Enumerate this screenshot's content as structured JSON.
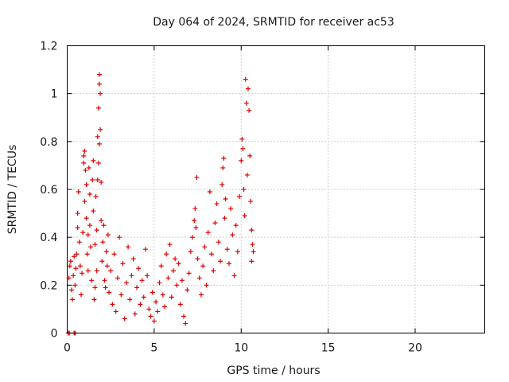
{
  "chart_data": {
    "type": "scatter",
    "title": "Day 064 of 2024, SRMTID for receiver ac53",
    "xlabel": "GPS time / hours",
    "ylabel": "SRMTID / TECUs",
    "xlim": [
      0,
      24
    ],
    "ylim": [
      0,
      1.2
    ],
    "xticks": [
      0,
      5,
      10,
      15,
      20
    ],
    "xtick_labels": [
      "0",
      "5",
      "10",
      "15",
      "20"
    ],
    "yticks": [
      0,
      0.2,
      0.4,
      0.6,
      0.8,
      1,
      1.2
    ],
    "ytick_labels": [
      "0",
      "0.2",
      "0.4",
      "0.6",
      "0.8",
      "1",
      "1.2"
    ],
    "grid": true,
    "marker": "+",
    "color": "#e00000",
    "series": [
      {
        "name": "SRMTID",
        "points": [
          [
            0.05,
            0.0
          ],
          [
            0.12,
            0.0
          ],
          [
            0.4,
            0.0
          ],
          [
            0.45,
            0.0
          ],
          [
            0.1,
            0.23
          ],
          [
            0.15,
            0.28
          ],
          [
            0.2,
            0.3
          ],
          [
            0.25,
            0.18
          ],
          [
            0.3,
            0.14
          ],
          [
            0.35,
            0.24
          ],
          [
            0.4,
            0.32
          ],
          [
            0.45,
            0.2
          ],
          [
            0.5,
            0.27
          ],
          [
            0.55,
            0.33
          ],
          [
            0.6,
            0.44
          ],
          [
            0.6,
            0.5
          ],
          [
            0.65,
            0.59
          ],
          [
            0.7,
            0.38
          ],
          [
            0.75,
            0.28
          ],
          [
            0.8,
            0.16
          ],
          [
            0.85,
            0.25
          ],
          [
            0.9,
            0.42
          ],
          [
            0.95,
            0.71
          ],
          [
            0.95,
            0.74
          ],
          [
            1.0,
            0.76
          ],
          [
            1.0,
            0.55
          ],
          [
            1.05,
            0.68
          ],
          [
            1.1,
            0.62
          ],
          [
            1.1,
            0.48
          ],
          [
            1.15,
            0.33
          ],
          [
            1.2,
            0.41
          ],
          [
            1.2,
            0.26
          ],
          [
            1.25,
            0.69
          ],
          [
            1.3,
            0.58
          ],
          [
            1.3,
            0.45
          ],
          [
            1.35,
            0.36
          ],
          [
            1.4,
            0.22
          ],
          [
            1.45,
            0.64
          ],
          [
            1.5,
            0.72
          ],
          [
            1.5,
            0.51
          ],
          [
            1.55,
            0.14
          ],
          [
            1.6,
            0.37
          ],
          [
            1.6,
            0.19
          ],
          [
            1.65,
            0.57
          ],
          [
            1.7,
            0.43
          ],
          [
            1.7,
            0.26
          ],
          [
            1.75,
            0.82
          ],
          [
            1.75,
            0.64
          ],
          [
            1.8,
            0.94
          ],
          [
            1.8,
            0.71
          ],
          [
            1.85,
            0.79
          ],
          [
            1.85,
            1.08
          ],
          [
            1.85,
            1.04
          ],
          [
            1.9,
            1.0
          ],
          [
            1.9,
            0.85
          ],
          [
            1.95,
            0.63
          ],
          [
            1.95,
            0.47
          ],
          [
            2.0,
            0.3
          ],
          [
            2.05,
            0.38
          ],
          [
            2.1,
            0.45
          ],
          [
            2.15,
            0.22
          ],
          [
            2.2,
            0.19
          ],
          [
            2.25,
            0.34
          ],
          [
            2.3,
            0.28
          ],
          [
            2.35,
            0.41
          ],
          [
            2.4,
            0.17
          ],
          [
            2.5,
            0.26
          ],
          [
            2.6,
            0.12
          ],
          [
            2.7,
            0.33
          ],
          [
            2.8,
            0.09
          ],
          [
            2.9,
            0.23
          ],
          [
            3.0,
            0.4
          ],
          [
            3.1,
            0.16
          ],
          [
            3.2,
            0.29
          ],
          [
            3.3,
            0.06
          ],
          [
            3.4,
            0.21
          ],
          [
            3.5,
            0.36
          ],
          [
            3.6,
            0.14
          ],
          [
            3.7,
            0.24
          ],
          [
            3.8,
            0.31
          ],
          [
            3.9,
            0.08
          ],
          [
            4.0,
            0.19
          ],
          [
            4.1,
            0.27
          ],
          [
            4.2,
            0.12
          ],
          [
            4.3,
            0.22
          ],
          [
            4.4,
            0.15
          ],
          [
            4.5,
            0.35
          ],
          [
            4.6,
            0.24
          ],
          [
            4.7,
            0.1
          ],
          [
            4.8,
            0.07
          ],
          [
            4.9,
            0.17
          ],
          [
            5.0,
            0.05
          ],
          [
            5.1,
            0.13
          ],
          [
            5.2,
            0.09
          ],
          [
            5.3,
            0.21
          ],
          [
            5.4,
            0.28
          ],
          [
            5.5,
            0.16
          ],
          [
            5.6,
            0.11
          ],
          [
            5.7,
            0.33
          ],
          [
            5.8,
            0.23
          ],
          [
            5.9,
            0.37
          ],
          [
            6.0,
            0.15
          ],
          [
            6.1,
            0.26
          ],
          [
            6.2,
            0.31
          ],
          [
            6.3,
            0.2
          ],
          [
            6.4,
            0.29
          ],
          [
            6.5,
            0.12
          ],
          [
            6.6,
            0.22
          ],
          [
            6.7,
            0.07
          ],
          [
            6.8,
            0.04
          ],
          [
            6.9,
            0.18
          ],
          [
            7.0,
            0.25
          ],
          [
            7.1,
            0.34
          ],
          [
            7.2,
            0.4
          ],
          [
            7.3,
            0.47
          ],
          [
            7.35,
            0.52
          ],
          [
            7.4,
            0.44
          ],
          [
            7.45,
            0.65
          ],
          [
            7.5,
            0.31
          ],
          [
            7.6,
            0.23
          ],
          [
            7.7,
            0.16
          ],
          [
            7.8,
            0.28
          ],
          [
            7.9,
            0.36
          ],
          [
            8.0,
            0.2
          ],
          [
            8.1,
            0.42
          ],
          [
            8.2,
            0.59
          ],
          [
            8.3,
            0.33
          ],
          [
            8.4,
            0.26
          ],
          [
            8.5,
            0.46
          ],
          [
            8.6,
            0.54
          ],
          [
            8.7,
            0.38
          ],
          [
            8.8,
            0.3
          ],
          [
            8.9,
            0.62
          ],
          [
            8.95,
            0.69
          ],
          [
            9.0,
            0.73
          ],
          [
            9.05,
            0.48
          ],
          [
            9.1,
            0.56
          ],
          [
            9.2,
            0.35
          ],
          [
            9.3,
            0.29
          ],
          [
            9.4,
            0.52
          ],
          [
            9.5,
            0.41
          ],
          [
            9.6,
            0.24
          ],
          [
            9.7,
            0.45
          ],
          [
            9.8,
            0.34
          ],
          [
            9.9,
            0.57
          ],
          [
            10.0,
            0.72
          ],
          [
            10.05,
            0.81
          ],
          [
            10.1,
            0.77
          ],
          [
            10.15,
            0.6
          ],
          [
            10.2,
            0.49
          ],
          [
            10.25,
            1.06
          ],
          [
            10.3,
            0.96
          ],
          [
            10.35,
            0.66
          ],
          [
            10.4,
            1.02
          ],
          [
            10.45,
            0.93
          ],
          [
            10.5,
            0.74
          ],
          [
            10.55,
            0.55
          ],
          [
            10.6,
            0.43
          ],
          [
            10.6,
            0.3
          ],
          [
            10.65,
            0.37
          ],
          [
            10.7,
            0.34
          ]
        ]
      }
    ]
  }
}
